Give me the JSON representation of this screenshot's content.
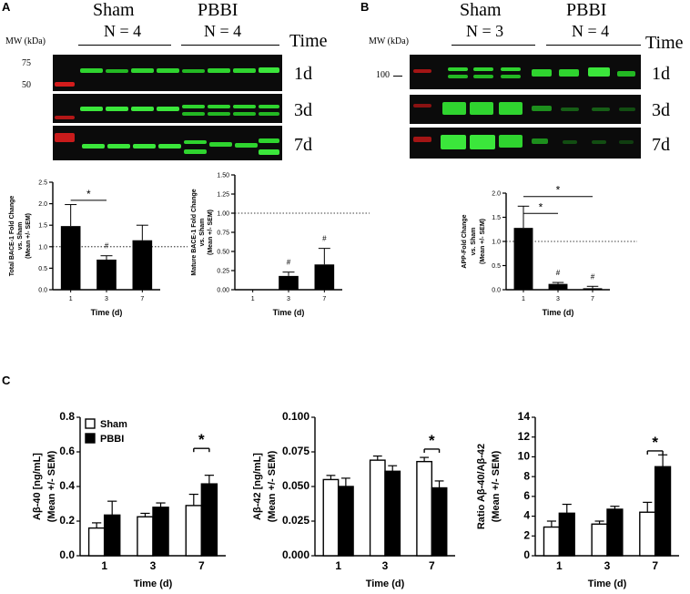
{
  "panels": {
    "a": "A",
    "b": "B",
    "c": "C"
  },
  "blot_a": {
    "groups": [
      {
        "label": "Sham",
        "n": "N = 4"
      },
      {
        "label": "PBBI",
        "n": "N = 4"
      }
    ],
    "time_header": "Time",
    "mw_header": "MW (kDa)",
    "mw_markers": [
      "75",
      "50"
    ],
    "rows": [
      "1d",
      "3d",
      "7d"
    ]
  },
  "blot_b": {
    "groups": [
      {
        "label": "Sham",
        "n": "N = 3"
      },
      {
        "label": "PBBI",
        "n": "N = 4"
      }
    ],
    "time_header": "Time",
    "mw_header": "MW (kDa)",
    "mw_markers": [
      "100"
    ],
    "rows": [
      "1d",
      "3d",
      "7d"
    ]
  },
  "chart_data": [
    {
      "id": "a1",
      "type": "bar",
      "categories": [
        "1",
        "3",
        "7"
      ],
      "values": [
        1.48,
        0.7,
        1.15
      ],
      "errors": [
        0.5,
        0.09,
        0.35
      ],
      "ylim": [
        0.0,
        2.5
      ],
      "yticks": [
        "0.0",
        "0.5",
        "1.0",
        "1.5",
        "2.0",
        "2.5"
      ],
      "ref_line": 1.0,
      "ylabel_lines": [
        "Total BACE-1 Fold Change",
        "vs. Sham",
        "(Mean +/- SEM)"
      ],
      "xlabel": "Time (d)",
      "hash_marks": [
        {
          "cat": 1,
          "text": "#"
        }
      ],
      "brackets": [
        {
          "from": 0,
          "to": 1,
          "y": 2.08,
          "text": "*"
        }
      ]
    },
    {
      "id": "a2",
      "type": "bar",
      "categories": [
        "1",
        "3",
        "7"
      ],
      "values": [
        0.0,
        0.18,
        0.33
      ],
      "errors": [
        0.0,
        0.05,
        0.21
      ],
      "ylim": [
        0.0,
        1.5
      ],
      "yticks": [
        "0.00",
        "0.25",
        "0.50",
        "0.75",
        "1.00",
        "1.25",
        "1.50"
      ],
      "ref_line": 1.0,
      "ylabel_lines": [
        "Mature BACE-1 Fold Change",
        "vs. Sham",
        "(Mean +/- SEM)"
      ],
      "xlabel": "Time (d)",
      "hash_marks": [
        {
          "cat": 1,
          "text": "#"
        },
        {
          "cat": 2,
          "text": "#"
        }
      ],
      "brackets": []
    },
    {
      "id": "b1",
      "type": "bar",
      "categories": [
        "1",
        "3",
        "7"
      ],
      "values": [
        1.28,
        0.12,
        0.03
      ],
      "errors": [
        0.45,
        0.03,
        0.04
      ],
      "ylim": [
        0.0,
        2.0
      ],
      "yticks": [
        "0.0",
        "0.5",
        "1.0",
        "1.5",
        "2.0"
      ],
      "ref_line": 1.0,
      "ylabel_lines": [
        "APP-Fold Change",
        "vs. Sham",
        "(Mean +/- SEM)"
      ],
      "xlabel": "Time (d)",
      "hash_marks": [
        {
          "cat": 1,
          "text": "#"
        },
        {
          "cat": 2,
          "text": "#"
        }
      ],
      "brackets": [
        {
          "from": 0,
          "to": 1,
          "y": 1.58,
          "text": "*"
        },
        {
          "from": 0,
          "to": 2,
          "y": 1.93,
          "text": "*"
        }
      ]
    },
    {
      "id": "c1",
      "type": "grouped_bar",
      "categories": [
        "1",
        "3",
        "7"
      ],
      "series": [
        {
          "name": "Sham",
          "values": [
            0.16,
            0.225,
            0.29
          ],
          "errors": [
            0.03,
            0.02,
            0.065
          ]
        },
        {
          "name": "PBBI",
          "values": [
            0.235,
            0.28,
            0.415
          ],
          "errors": [
            0.08,
            0.025,
            0.05
          ]
        }
      ],
      "ylim": [
        0.0,
        0.8
      ],
      "yticks": [
        "0.0",
        "0.2",
        "0.4",
        "0.6",
        "0.8"
      ],
      "ylabel_lines": [
        "Aβ-40 [ng/mL]",
        "(Mean +/- SEM)"
      ],
      "xlabel": "Time (d)",
      "legend": "top-left",
      "star": {
        "cat": 2,
        "y": 0.62,
        "text": "*"
      }
    },
    {
      "id": "c2",
      "type": "grouped_bar",
      "categories": [
        "1",
        "3",
        "7"
      ],
      "series": [
        {
          "name": "Sham",
          "values": [
            0.055,
            0.069,
            0.068
          ],
          "errors": [
            0.003,
            0.003,
            0.003
          ]
        },
        {
          "name": "PBBI",
          "values": [
            0.05,
            0.061,
            0.049
          ],
          "errors": [
            0.006,
            0.004,
            0.005
          ]
        }
      ],
      "ylim": [
        0.0,
        0.1
      ],
      "yticks": [
        "0.000",
        "0.025",
        "0.050",
        "0.075",
        "0.100"
      ],
      "ylabel_lines": [
        "Aβ-42 [ng/mL]",
        "(Mean +/- SEM)"
      ],
      "xlabel": "Time (d)",
      "star": {
        "cat": 2,
        "y": 0.077,
        "text": "*"
      }
    },
    {
      "id": "c3",
      "type": "grouped_bar",
      "categories": [
        "1",
        "3",
        "7"
      ],
      "series": [
        {
          "name": "Sham",
          "values": [
            2.9,
            3.2,
            4.4
          ],
          "errors": [
            0.6,
            0.3,
            1.0
          ]
        },
        {
          "name": "PBBI",
          "values": [
            4.3,
            4.7,
            9.0
          ],
          "errors": [
            0.9,
            0.3,
            1.2
          ]
        }
      ],
      "ylim": [
        0,
        14
      ],
      "yticks": [
        "0",
        "2",
        "4",
        "6",
        "8",
        "10",
        "12",
        "14"
      ],
      "ylabel_lines": [
        "Ratio Aβ-40/Aβ-42",
        "(Mean +/- SEM)"
      ],
      "xlabel": "Time (d)",
      "star": {
        "cat": 2,
        "y": 10.6,
        "text": "*"
      }
    }
  ]
}
